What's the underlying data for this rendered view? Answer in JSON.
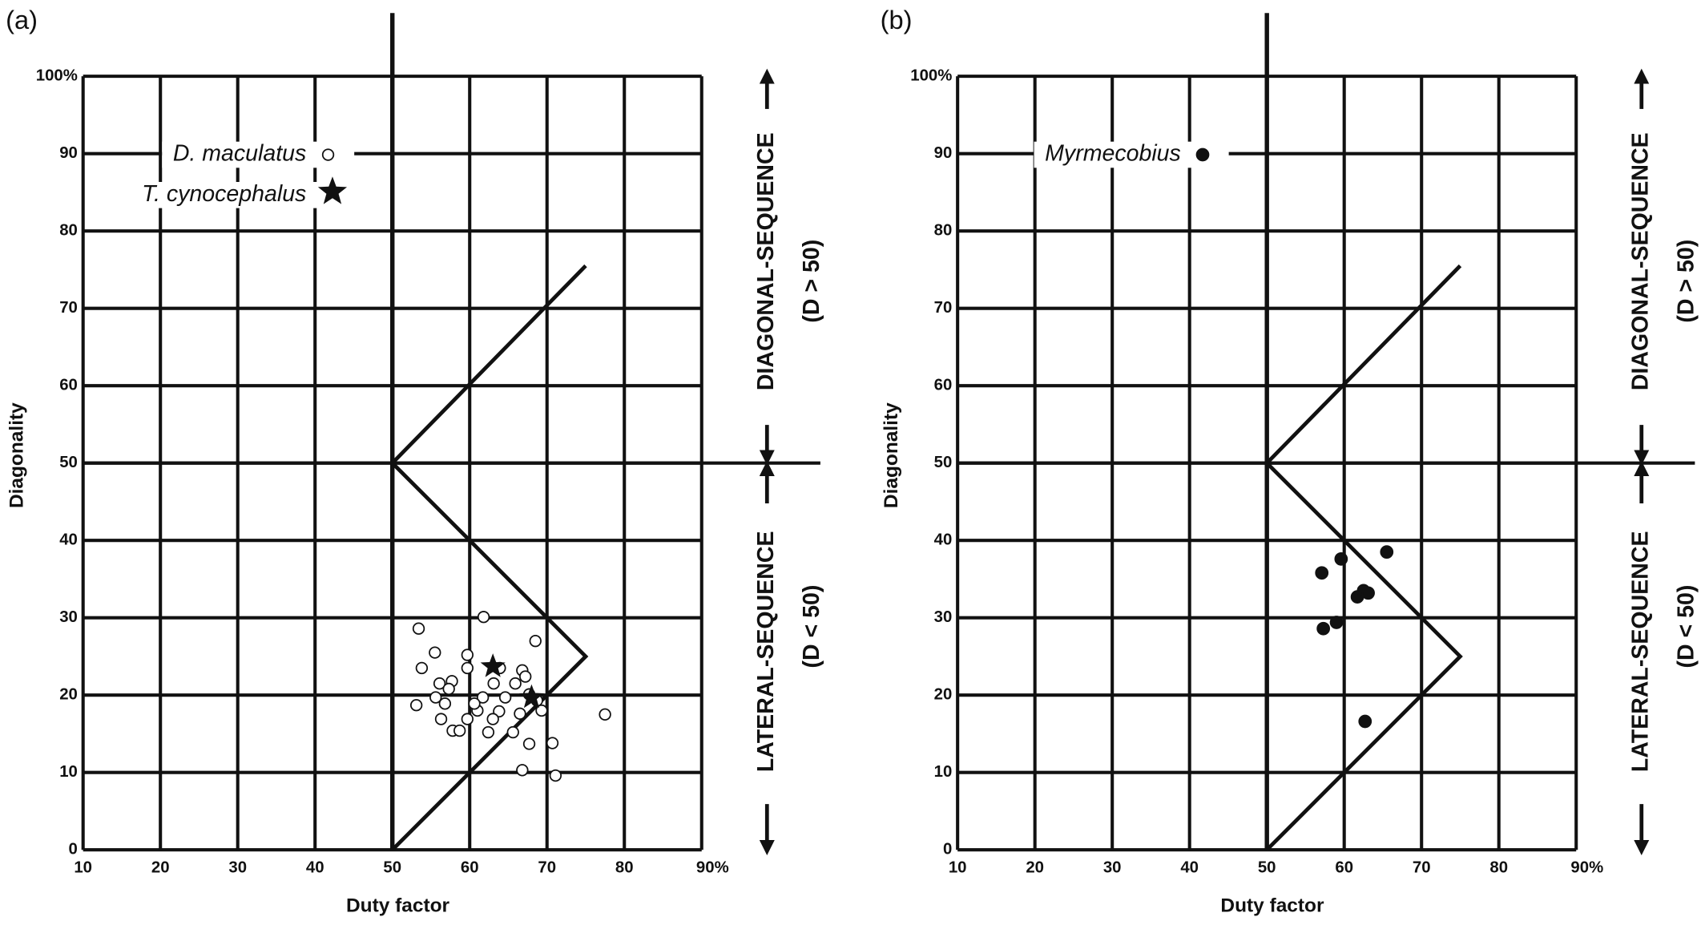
{
  "chart_data": [
    {
      "type": "scatter",
      "panel": "(a)",
      "xlabel": "Duty factor",
      "ylabel": "Diagonality",
      "xlim": [
        10,
        90
      ],
      "ylim": [
        0,
        100
      ],
      "xticks": [
        10,
        20,
        30,
        40,
        50,
        60,
        70,
        80,
        {
          "value": 90,
          "label": "90%"
        }
      ],
      "yticks": [
        0,
        10,
        20,
        30,
        40,
        50,
        60,
        70,
        80,
        90,
        {
          "value": 100,
          "label": "100%"
        }
      ],
      "grid": true,
      "xline": 50,
      "yline": 50,
      "reference_line": {
        "x": [
          75,
          50,
          75,
          50
        ],
        "y": [
          75.5,
          50,
          25,
          0
        ]
      },
      "annotations": [
        "DIAGONAL-SEQUENCE",
        "(D > 50)",
        "LATERAL-SEQUENCE",
        "(D < 50)"
      ],
      "series": [
        {
          "name": "D. maculatus",
          "marker": "open-circle",
          "color": "#111111",
          "x": [
            61.8,
            53.4,
            55.5,
            59.7,
            68.5,
            53.8,
            59.7,
            63.9,
            66.8,
            67.2,
            56.1,
            57.7,
            65.9,
            57.3,
            63.1,
            55.6,
            61.7,
            64.6,
            67.7,
            68.7,
            56.8,
            53.1,
            61.0,
            63.8,
            69.3,
            66.5,
            77.5,
            56.3,
            59.7,
            63.0,
            57.8,
            58.7,
            62.4,
            65.6,
            67.7,
            70.7,
            66.8,
            71.1,
            60.6
          ],
          "y": [
            30.1,
            28.6,
            25.5,
            25.2,
            27.0,
            23.5,
            23.5,
            23.5,
            23.2,
            22.4,
            21.5,
            21.8,
            21.5,
            20.8,
            21.5,
            19.7,
            19.7,
            19.7,
            20.1,
            19.3,
            18.9,
            18.7,
            18.0,
            17.9,
            18.0,
            17.6,
            17.5,
            16.9,
            16.9,
            16.9,
            15.4,
            15.4,
            15.2,
            15.2,
            13.7,
            13.8,
            10.3,
            9.6,
            18.9
          ]
        },
        {
          "name": "T. cynocephalus",
          "marker": "star",
          "color": "#111111",
          "x": [
            63.0,
            68.0
          ],
          "y": [
            23.7,
            19.7
          ]
        }
      ]
    },
    {
      "type": "scatter",
      "panel": "(b)",
      "xlabel": "Duty factor",
      "ylabel": "Diagonality",
      "xlim": [
        10,
        90
      ],
      "ylim": [
        0,
        100
      ],
      "xticks": [
        10,
        20,
        30,
        40,
        50,
        60,
        70,
        80,
        {
          "value": 90,
          "label": "90%"
        }
      ],
      "yticks": [
        0,
        10,
        20,
        30,
        40,
        50,
        60,
        70,
        80,
        90,
        {
          "value": 100,
          "label": "100%"
        }
      ],
      "grid": true,
      "xline": 50,
      "yline": 50,
      "reference_line": {
        "x": [
          75,
          50,
          75,
          50
        ],
        "y": [
          75.5,
          50,
          25,
          0
        ]
      },
      "annotations": [
        "DIAGONAL-SEQUENCE",
        "(D > 50)",
        "LATERAL-SEQUENCE",
        "(D < 50)"
      ],
      "series": [
        {
          "name": "Myrmecobius",
          "marker": "filled-circle",
          "color": "#111111",
          "x": [
            57.1,
            59.6,
            65.5,
            61.7,
            62.5,
            63.1,
            57.3,
            59.0,
            62.7
          ],
          "y": [
            35.8,
            37.6,
            38.5,
            32.7,
            33.5,
            33.2,
            28.6,
            29.4,
            16.6
          ]
        }
      ]
    }
  ]
}
